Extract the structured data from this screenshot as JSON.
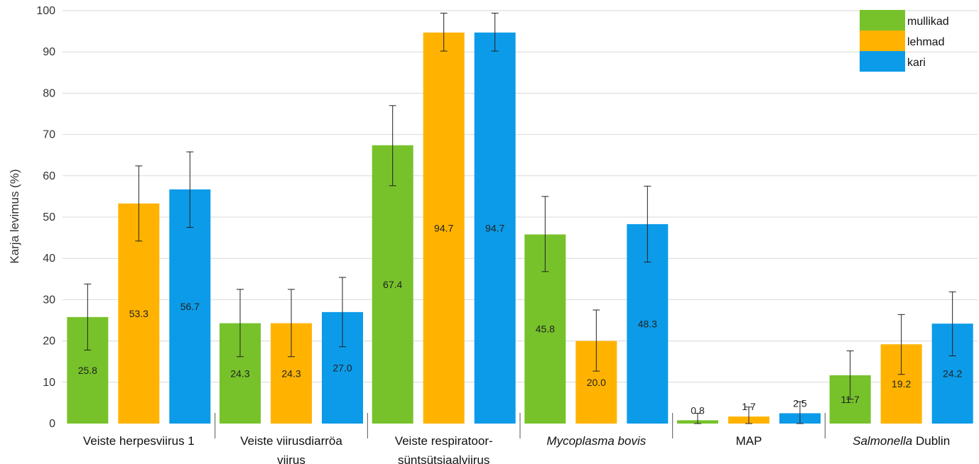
{
  "chart_data": {
    "type": "bar",
    "ylabel": "Karja levimus (%)",
    "ylim": [
      0,
      100
    ],
    "yticks": [
      0,
      10,
      20,
      30,
      40,
      50,
      60,
      70,
      80,
      90,
      100
    ],
    "grid": true,
    "legend_position": "top-right",
    "categories": [
      {
        "lines": [
          [
            {
              "text": "Veiste herpesviirus 1",
              "italic": false
            }
          ]
        ]
      },
      {
        "lines": [
          [
            {
              "text": "Veiste viirusdiarröa",
              "italic": false
            }
          ],
          [
            {
              "text": "viirus",
              "italic": false
            }
          ]
        ]
      },
      {
        "lines": [
          [
            {
              "text": "Veiste respiratoor-",
              "italic": false
            }
          ],
          [
            {
              "text": "süntsütsiaalviirus",
              "italic": false
            }
          ]
        ]
      },
      {
        "lines": [
          [
            {
              "text": "Mycoplasma bovis",
              "italic": true
            }
          ]
        ]
      },
      {
        "lines": [
          [
            {
              "text": "MAP",
              "italic": false
            }
          ]
        ]
      },
      {
        "lines": [
          [
            {
              "text": "Salmonella",
              "italic": true
            },
            {
              "text": " Dublin",
              "italic": false
            }
          ]
        ]
      }
    ],
    "series": [
      {
        "name": "mullikad",
        "color": "#77c22b",
        "values": [
          25.8,
          24.3,
          67.4,
          45.8,
          0.8,
          11.7
        ],
        "labels": [
          "25.8",
          "24.3",
          "67.4",
          "45.8",
          "0.8",
          "11.7"
        ],
        "err_low": [
          17.8,
          16.2,
          57.6,
          36.8,
          0.0,
          5.9
        ],
        "err_high": [
          33.8,
          32.5,
          77.0,
          55.0,
          2.5,
          17.6
        ]
      },
      {
        "name": "lehmad",
        "color": "#ffb300",
        "values": [
          53.3,
          24.3,
          94.7,
          20.0,
          1.7,
          19.2
        ],
        "labels": [
          "53.3",
          "24.3",
          "94.7",
          "20.0",
          "1.7",
          "19.2"
        ],
        "err_low": [
          44.2,
          16.2,
          90.2,
          12.7,
          0.0,
          11.9
        ],
        "err_high": [
          62.4,
          32.5,
          99.4,
          27.5,
          4.0,
          26.4
        ]
      },
      {
        "name": "kari",
        "color": "#0c9be8",
        "values": [
          56.7,
          27.0,
          94.7,
          48.3,
          2.5,
          24.2
        ],
        "labels": [
          "56.7",
          "27.0",
          "94.7",
          "48.3",
          "2.5",
          "24.2"
        ],
        "err_low": [
          47.5,
          18.6,
          90.2,
          39.1,
          0.0,
          16.4
        ],
        "err_high": [
          65.8,
          35.4,
          99.4,
          57.5,
          5.3,
          31.9
        ]
      }
    ]
  }
}
